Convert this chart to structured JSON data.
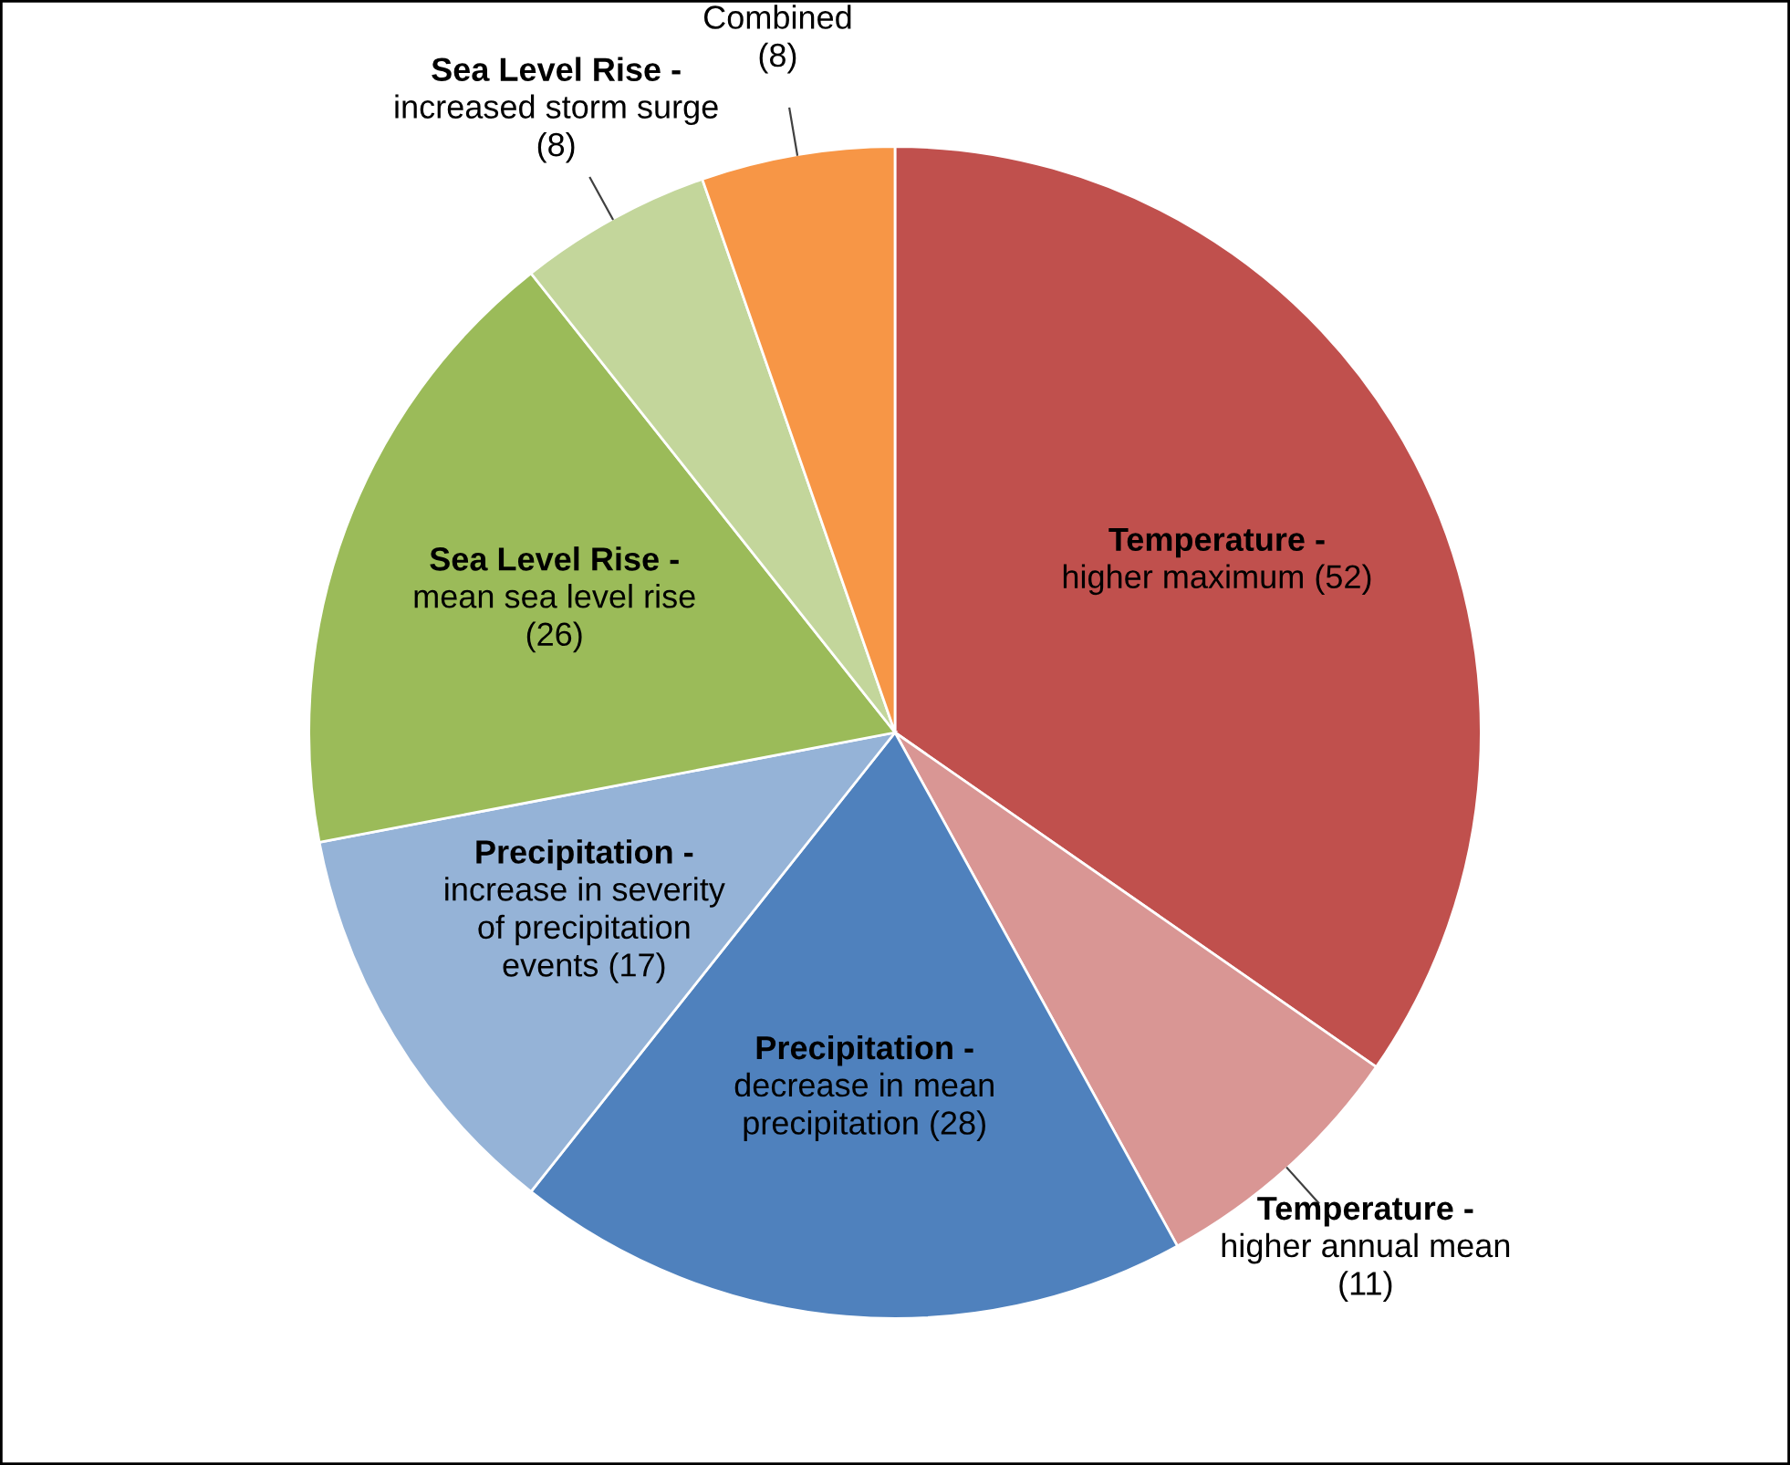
{
  "chart_data": {
    "type": "pie",
    "categories": [
      "Temperature - higher maximum (52)",
      "Temperature - higher annual mean (11)",
      "Precipitation - decrease in mean precipitation (28)",
      "Precipitation - increase in severity of precipitation events (17)",
      "Sea Level Rise - mean sea level rise (26)",
      "Sea Level Rise - increased storm surge (8)",
      "Combined (8)"
    ],
    "values": [
      52,
      11,
      28,
      17,
      26,
      8,
      8
    ],
    "colors": [
      "#c0504d",
      "#d99694",
      "#4f81bd",
      "#95b3d7",
      "#9bbb59",
      "#c3d69b",
      "#f79646"
    ],
    "legend": false
  }
}
